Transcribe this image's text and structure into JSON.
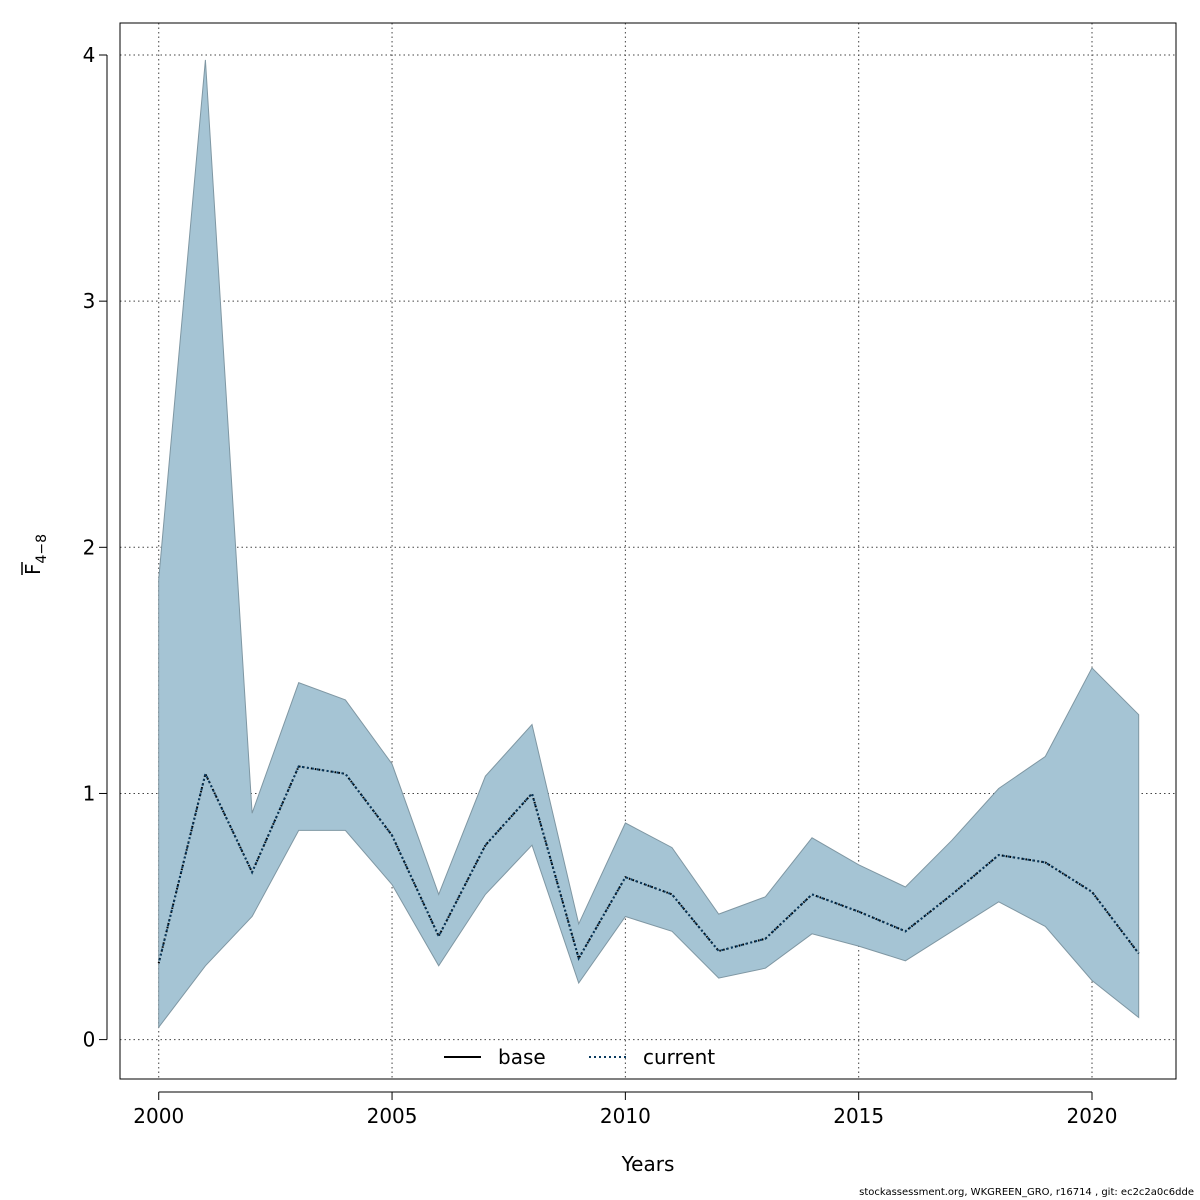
{
  "chart_data": {
    "type": "area",
    "xlabel": "Years",
    "ylabel_main": "F",
    "ylabel_sub": "4−8",
    "xlim": [
      1999.17,
      2021.8
    ],
    "ylim": [
      -0.16,
      4.13
    ],
    "x_ticks": [
      2000,
      2005,
      2010,
      2015,
      2020
    ],
    "y_ticks": [
      0,
      1,
      2,
      3,
      4
    ],
    "grid": true,
    "legend_position": "bottom",
    "colors": {
      "band": "#a5c4d4",
      "band_edge": "#7f97a3",
      "current": "#0a3a5f",
      "base": "#000000",
      "grid": "#444444"
    },
    "x": [
      2000,
      2001,
      2002,
      2003,
      2004,
      2005,
      2006,
      2007,
      2008,
      2009,
      2010,
      2011,
      2012,
      2013,
      2014,
      2015,
      2016,
      2017,
      2018,
      2019,
      2020,
      2021
    ],
    "series": [
      {
        "name": "current",
        "style": "dotted",
        "values": [
          0.31,
          1.08,
          0.68,
          1.11,
          1.08,
          0.83,
          0.42,
          0.79,
          1.0,
          0.33,
          0.66,
          0.59,
          0.36,
          0.41,
          0.59,
          0.52,
          0.44,
          0.59,
          0.75,
          0.72,
          0.6,
          0.35
        ]
      }
    ],
    "band": {
      "lower": [
        0.05,
        0.3,
        0.5,
        0.85,
        0.85,
        0.63,
        0.3,
        0.59,
        0.79,
        0.23,
        0.5,
        0.44,
        0.25,
        0.29,
        0.43,
        0.38,
        0.32,
        0.44,
        0.56,
        0.46,
        0.24,
        0.09
      ],
      "upper": [
        1.87,
        3.98,
        0.92,
        1.45,
        1.38,
        1.12,
        0.59,
        1.07,
        1.28,
        0.47,
        0.88,
        0.78,
        0.51,
        0.58,
        0.82,
        0.71,
        0.62,
        0.81,
        1.02,
        1.15,
        1.51,
        1.32
      ]
    },
    "legend": [
      {
        "label": "base",
        "style": "solid"
      },
      {
        "label": "current",
        "style": "dotted"
      }
    ]
  },
  "footer": "stockassessment.org, WKGREEN_GRO, r16714 , git: ec2c2a0c6dde"
}
